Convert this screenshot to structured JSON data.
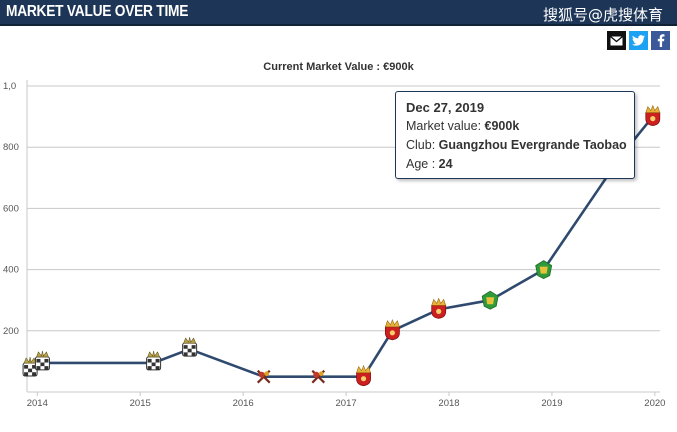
{
  "header": {
    "title": "MARKET VALUE OVER TIME",
    "watermark": "搜狐号@虎搜体育"
  },
  "share": {
    "email_icon": "email-icon",
    "twitter_icon": "twitter-icon",
    "facebook_icon": "facebook-icon"
  },
  "chart_data": {
    "type": "line",
    "title": "Current Market Value : €900k",
    "xlabel": "",
    "ylabel": "",
    "x_ticks": [
      "2014",
      "2015",
      "2016",
      "2017",
      "2018",
      "2019",
      "2020"
    ],
    "y_ticks": [
      "200",
      "400",
      "600",
      "800",
      "1,0"
    ],
    "ylim": [
      0,
      1000
    ],
    "xlim": [
      2013.9,
      2020.05
    ],
    "grid": true,
    "line_color": "#2f4a6e",
    "points": [
      {
        "x": 2013.93,
        "y": 75,
        "club": "udinese"
      },
      {
        "x": 2014.05,
        "y": 95,
        "club": "udinese"
      },
      {
        "x": 2015.13,
        "y": 95,
        "club": "udinese"
      },
      {
        "x": 2015.48,
        "y": 140,
        "club": "udinese"
      },
      {
        "x": 2016.2,
        "y": 50,
        "club": "watford"
      },
      {
        "x": 2016.73,
        "y": 50,
        "club": "watford"
      },
      {
        "x": 2017.17,
        "y": 50,
        "club": "guangzhou"
      },
      {
        "x": 2017.45,
        "y": 200,
        "club": "guangzhou"
      },
      {
        "x": 2017.9,
        "y": 270,
        "club": "guangzhou"
      },
      {
        "x": 2018.4,
        "y": 300,
        "club": "beijing"
      },
      {
        "x": 2018.92,
        "y": 400,
        "club": "beijing"
      },
      {
        "x": 2019.68,
        "y": 775,
        "club": "guangzhou"
      },
      {
        "x": 2019.98,
        "y": 900,
        "club": "guangzhou"
      }
    ],
    "tooltip": {
      "date": "Dec 27, 2019",
      "market_value_label": "Market value",
      "market_value": "€900k",
      "club_label": "Club",
      "club": "Guangzhou Evergrande Taobao",
      "age_label": "Age",
      "age": "24"
    }
  }
}
